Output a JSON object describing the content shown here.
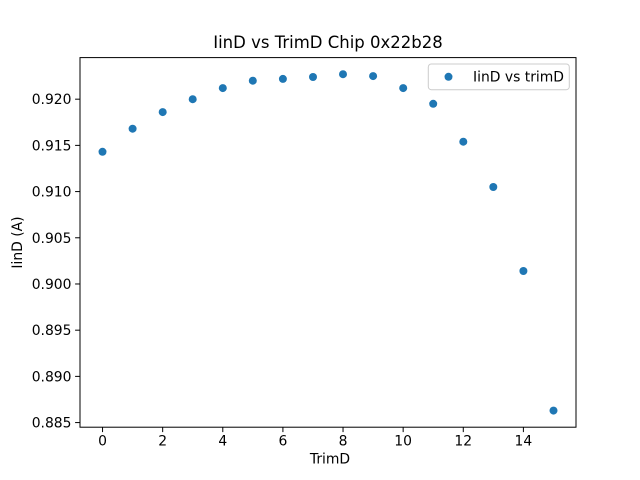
{
  "figure": {
    "background": "#ffffff",
    "spine_color": "#000000",
    "tick_color": "#000000"
  },
  "chart_data": {
    "type": "scatter",
    "title": "IinD vs TrimD Chip 0x22b28",
    "xlabel": "TrimD",
    "ylabel": "IinD (A)",
    "grid": false,
    "xlim": [
      -0.75,
      15.75
    ],
    "ylim": [
      0.8845,
      0.9245
    ],
    "xticks": {
      "values": [
        0,
        2,
        4,
        6,
        8,
        10,
        12,
        14
      ],
      "labels": [
        "0",
        "2",
        "4",
        "6",
        "8",
        "10",
        "12",
        "14"
      ]
    },
    "yticks": {
      "values": [
        0.885,
        0.89,
        0.895,
        0.9,
        0.905,
        0.91,
        0.915,
        0.92
      ],
      "labels": [
        "0.885",
        "0.890",
        "0.895",
        "0.900",
        "0.905",
        "0.910",
        "0.915",
        "0.920"
      ]
    },
    "series": [
      {
        "name": "IinD vs trimD",
        "marker": "circle",
        "color": "#1f77b4",
        "x": [
          0,
          1,
          2,
          3,
          4,
          5,
          6,
          7,
          8,
          9,
          10,
          11,
          12,
          13,
          14,
          15
        ],
        "y": [
          0.9143,
          0.9168,
          0.9186,
          0.92,
          0.9212,
          0.922,
          0.9222,
          0.9224,
          0.9227,
          0.9225,
          0.9212,
          0.9195,
          0.9154,
          0.9105,
          0.9014,
          0.8863
        ]
      }
    ],
    "legend": {
      "position": "upper right",
      "entries": [
        {
          "label": "IinD vs trimD",
          "marker": "circle",
          "color": "#1f77b4"
        }
      ]
    }
  }
}
